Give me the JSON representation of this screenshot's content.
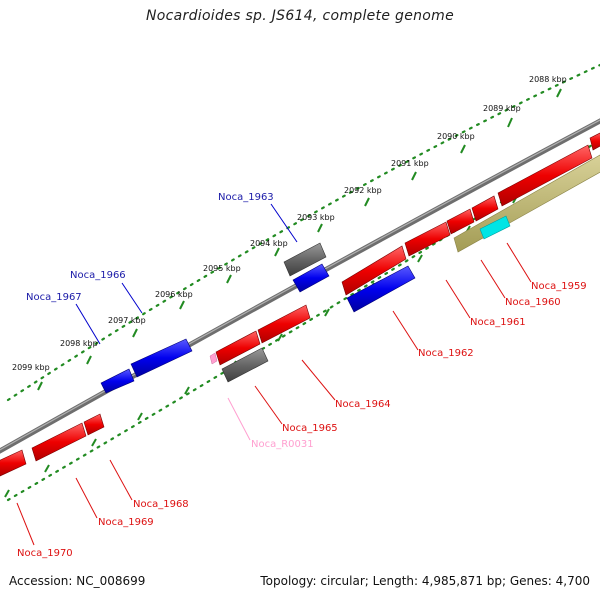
{
  "title": "Nocardioides sp. JS614, complete genome",
  "footer": {
    "accession": "Accession: NC_008699",
    "summary": "Topology: circular; Length: 4,985,871 bp; Genes: 4,700"
  },
  "colors": {
    "cds": "#ff0000",
    "cds_reverse": "#0000ff",
    "other_gene": "#666666",
    "rna": "#ff9fd0",
    "feature_cyan": "#00e5e5",
    "feature_khaki": "#bdb56b",
    "backbone": "#888888",
    "ticks": "#228b22",
    "label_top": "#1a1aa8",
    "label_bottom": "#dd1111"
  },
  "kbp_ticks": [
    {
      "label": "2088 kbp"
    },
    {
      "label": "2089 kbp"
    },
    {
      "label": "2090 kbp"
    },
    {
      "label": "2091 kbp"
    },
    {
      "label": "2092 kbp"
    },
    {
      "label": "2093 kbp"
    },
    {
      "label": "2094 kbp"
    },
    {
      "label": "2095 kbp"
    },
    {
      "label": "2096 kbp"
    },
    {
      "label": "2097 kbp"
    },
    {
      "label": "2098 kbp"
    },
    {
      "label": "2099 kbp"
    }
  ],
  "gene_labels_top": [
    {
      "name": "Noca_1963"
    },
    {
      "name": "Noca_1966"
    },
    {
      "name": "Noca_1967"
    }
  ],
  "gene_labels_bottom": [
    {
      "name": "Noca_1959"
    },
    {
      "name": "Noca_1960"
    },
    {
      "name": "Noca_1961"
    },
    {
      "name": "Noca_1962"
    },
    {
      "name": "Noca_1964"
    },
    {
      "name": "Noca_1965"
    },
    {
      "name": "Noca_R0031"
    },
    {
      "name": "Noca_1968"
    },
    {
      "name": "Noca_1969"
    },
    {
      "name": "Noca_1970"
    }
  ]
}
